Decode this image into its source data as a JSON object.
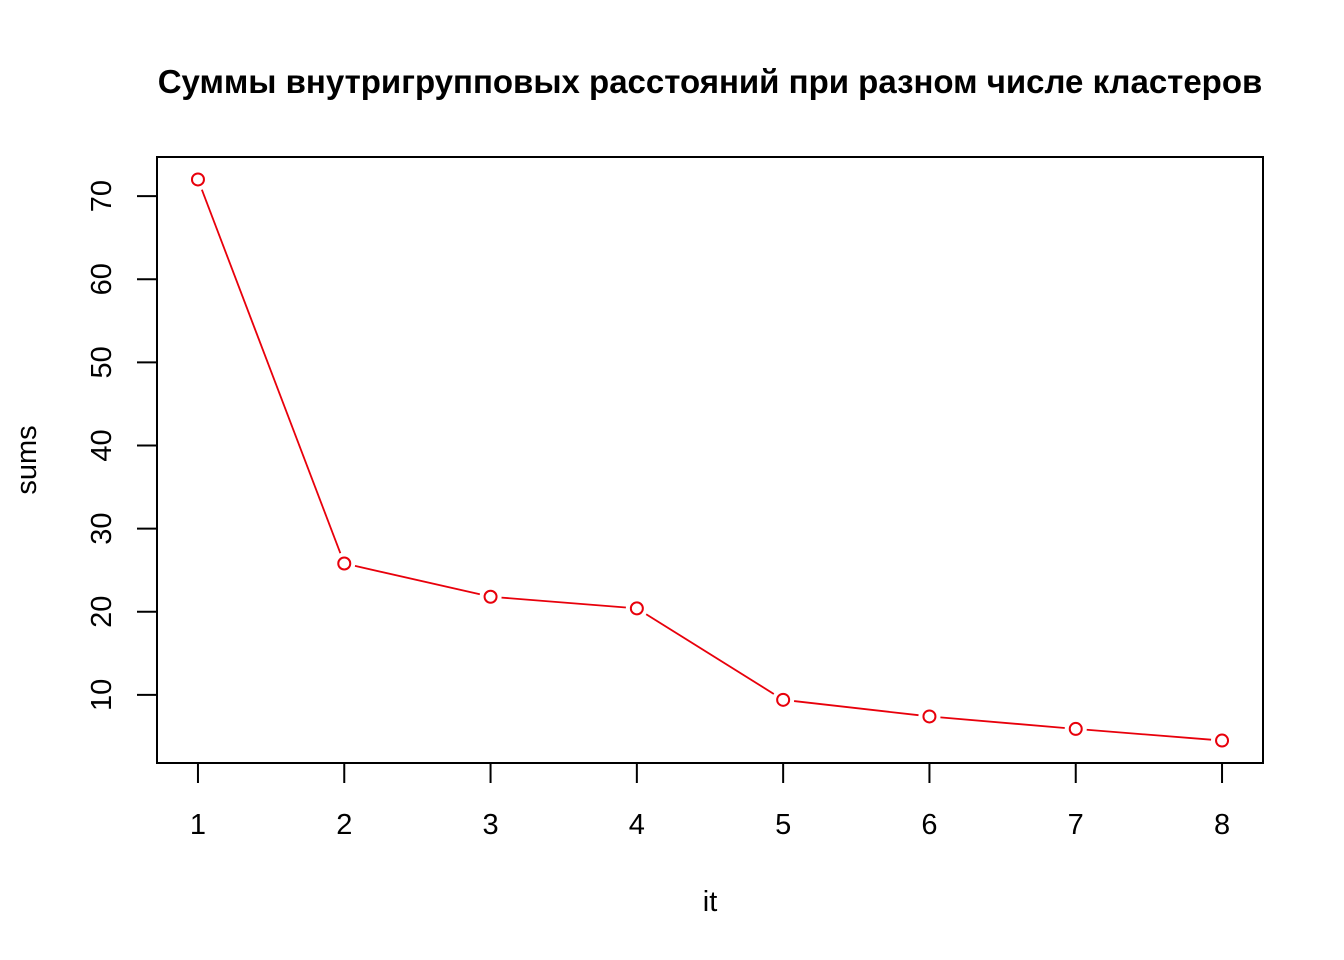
{
  "chart_data": {
    "type": "line",
    "title": "Суммы внутригрупповых расстояний при разном числе кластеров",
    "xlabel": "it",
    "ylabel": "sums",
    "x": [
      1,
      2,
      3,
      4,
      5,
      6,
      7,
      8
    ],
    "series": [
      {
        "values": [
          72.0,
          25.8,
          21.8,
          20.4,
          9.4,
          7.4,
          5.9,
          4.5
        ],
        "color": "#e8000b"
      }
    ],
    "xticks": [
      "1",
      "2",
      "3",
      "4",
      "5",
      "6",
      "7",
      "8"
    ],
    "yticks": [
      "10",
      "20",
      "30",
      "40",
      "50",
      "60",
      "70"
    ],
    "xlim": [
      0.72,
      8.28
    ],
    "ylim": [
      1.8,
      74.7
    ],
    "grid": false,
    "marker": "open-circle",
    "line_color": "#e8000b",
    "axis_color": "#000000"
  }
}
